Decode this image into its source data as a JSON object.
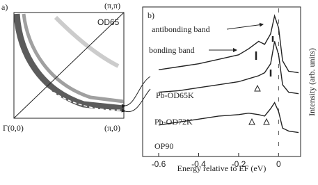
{
  "chart_data": [
    {
      "type": "map",
      "label": "a)",
      "title": "OD65",
      "corner_top_right": "(π,π)",
      "corner_bottom_left": "Γ(0,0)",
      "corner_bottom_right": "(π,0)"
    },
    {
      "type": "line",
      "label": "b)",
      "xlabel": "Energy relative to EF (eV)",
      "ylabel": "Intensity (arb. units)",
      "annotations": [
        "antibonding band",
        "bonding band"
      ],
      "x": [
        -0.6,
        -0.5,
        -0.4,
        -0.3,
        -0.2,
        -0.15,
        -0.1,
        -0.07,
        -0.04,
        -0.02,
        0,
        0.02,
        0.05,
        0.1
      ],
      "series": [
        {
          "name": "Pb-OD65K",
          "color": "#222222",
          "values": [
            5.8,
            6.0,
            6.2,
            6.5,
            6.8,
            7.2,
            7.7,
            7.5,
            8.2,
            9.4,
            8.6,
            6.4,
            5.7,
            5.6
          ]
        },
        {
          "name": "Pb-OD72K",
          "color": "#222222",
          "values": [
            4.3,
            4.4,
            4.6,
            4.8,
            5.0,
            5.2,
            5.4,
            5.6,
            6.2,
            7.7,
            6.8,
            4.8,
            4.3,
            4.2
          ]
        },
        {
          "name": "OP90",
          "color": "#222222",
          "values": [
            2.1,
            2.3,
            2.5,
            2.7,
            2.8,
            2.9,
            2.8,
            2.7,
            3.2,
            3.6,
            3.0,
            1.9,
            1.7,
            1.6
          ]
        }
      ],
      "xlim": [
        -0.68,
        0.11
      ],
      "xticks": [
        -0.6,
        -0.4,
        -0.2,
        0
      ],
      "ylim": [
        0,
        10
      ]
    }
  ]
}
